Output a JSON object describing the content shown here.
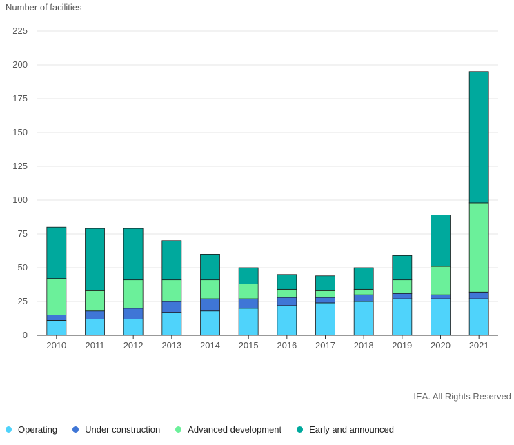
{
  "colors": {
    "operating": "#4fd3fb",
    "under_construction": "#3f76d6",
    "advanced_development": "#6bf09a",
    "early_and_announced": "#00a99d"
  },
  "credit": "IEA. All Rights Reserved",
  "chart_data": {
    "type": "bar",
    "stacked": true,
    "ylabel": "Number of facilities",
    "xlabel": "",
    "ylim": [
      0,
      225
    ],
    "yticks": [
      0,
      25,
      50,
      75,
      100,
      125,
      150,
      175,
      200,
      225
    ],
    "grid": true,
    "legend_position": "bottom-left",
    "categories": [
      "2010",
      "2011",
      "2012",
      "2013",
      "2014",
      "2015",
      "2016",
      "2017",
      "2018",
      "2019",
      "2020",
      "2021"
    ],
    "series": [
      {
        "name": "Operating",
        "color_key": "operating",
        "values": [
          11,
          12,
          12,
          17,
          18,
          20,
          22,
          24,
          25,
          27,
          27,
          27
        ]
      },
      {
        "name": "Under construction",
        "color_key": "under_construction",
        "values": [
          4,
          6,
          8,
          8,
          9,
          7,
          6,
          4,
          5,
          4,
          3,
          5
        ]
      },
      {
        "name": "Advanced development",
        "color_key": "advanced_development",
        "values": [
          27,
          15,
          21,
          16,
          14,
          11,
          6,
          5,
          4,
          10,
          21,
          66
        ]
      },
      {
        "name": "Early and announced",
        "color_key": "early_and_announced",
        "values": [
          38,
          46,
          38,
          29,
          19,
          12,
          11,
          11,
          16,
          18,
          38,
          97
        ]
      }
    ]
  }
}
